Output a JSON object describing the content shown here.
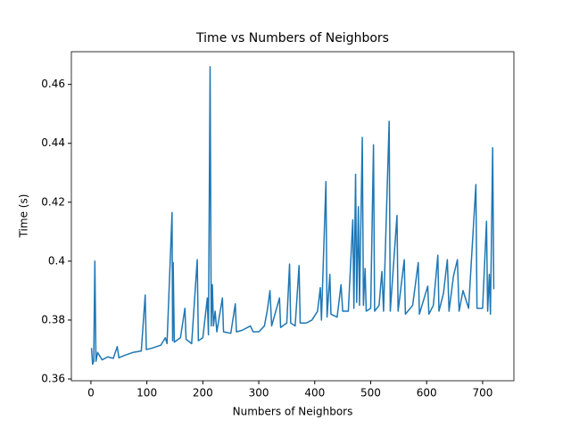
{
  "chart_data": {
    "type": "line",
    "title": "Time vs Numbers of Neighbors",
    "x_label": "Numbers of Neighbors",
    "y_label": "Time (s)",
    "x": [
      1,
      3,
      5,
      7,
      9,
      12,
      20,
      30,
      40,
      47,
      50,
      60,
      75,
      90,
      97,
      99,
      110,
      125,
      133,
      136,
      145,
      146,
      147,
      149,
      160,
      168,
      170,
      180,
      190,
      192,
      200,
      208,
      210,
      213,
      215,
      217,
      219,
      222,
      225,
      235,
      237,
      250,
      258,
      260,
      270,
      285,
      290,
      300,
      310,
      315,
      320,
      323,
      337,
      339,
      350,
      355,
      357,
      365,
      372,
      374,
      385,
      395,
      405,
      410,
      412,
      420,
      422,
      427,
      429,
      440,
      447,
      450,
      460,
      468,
      470,
      473,
      475,
      478,
      480,
      485,
      487,
      490,
      492,
      500,
      505,
      507,
      515,
      520,
      523,
      533,
      535,
      547,
      549,
      560,
      562,
      575,
      585,
      587,
      602,
      604,
      612,
      620,
      622,
      630,
      637,
      640,
      648,
      655,
      658,
      665,
      675,
      688,
      690,
      700,
      707,
      709,
      712,
      714,
      718,
      720
    ],
    "series": [
      {
        "name": "Time",
        "color": "#1f77b4",
        "values": [
          0.3705,
          0.365,
          0.366,
          0.4,
          0.366,
          0.369,
          0.3665,
          0.3675,
          0.367,
          0.371,
          0.3672,
          0.368,
          0.369,
          0.3695,
          0.3885,
          0.37,
          0.3705,
          0.3715,
          0.374,
          0.372,
          0.4165,
          0.373,
          0.3995,
          0.3725,
          0.374,
          0.384,
          0.3735,
          0.372,
          0.4005,
          0.373,
          0.374,
          0.3875,
          0.375,
          0.466,
          0.378,
          0.392,
          0.378,
          0.383,
          0.376,
          0.3875,
          0.376,
          0.3755,
          0.3855,
          0.376,
          0.3765,
          0.378,
          0.376,
          0.376,
          0.378,
          0.383,
          0.39,
          0.378,
          0.3875,
          0.3775,
          0.379,
          0.399,
          0.379,
          0.378,
          0.3985,
          0.379,
          0.379,
          0.38,
          0.383,
          0.391,
          0.38,
          0.427,
          0.381,
          0.3955,
          0.382,
          0.381,
          0.392,
          0.383,
          0.383,
          0.414,
          0.384,
          0.4295,
          0.386,
          0.4185,
          0.385,
          0.442,
          0.385,
          0.3975,
          0.383,
          0.384,
          0.4395,
          0.383,
          0.385,
          0.3965,
          0.383,
          0.4475,
          0.383,
          0.4155,
          0.383,
          0.4005,
          0.382,
          0.385,
          0.3995,
          0.382,
          0.3915,
          0.382,
          0.385,
          0.402,
          0.383,
          0.389,
          0.4005,
          0.383,
          0.395,
          0.4005,
          0.383,
          0.39,
          0.384,
          0.426,
          0.384,
          0.384,
          0.4135,
          0.383,
          0.3955,
          0.382,
          0.4385,
          0.3905
        ]
      }
    ],
    "xlim": [
      -34.95,
      755.95
    ],
    "ylim": [
      0.3594,
      0.4711
    ],
    "xticks": [
      0,
      100,
      200,
      300,
      400,
      500,
      600,
      700
    ],
    "yticks": [
      0.36,
      0.38,
      0.4,
      0.42,
      0.44,
      0.46
    ]
  }
}
